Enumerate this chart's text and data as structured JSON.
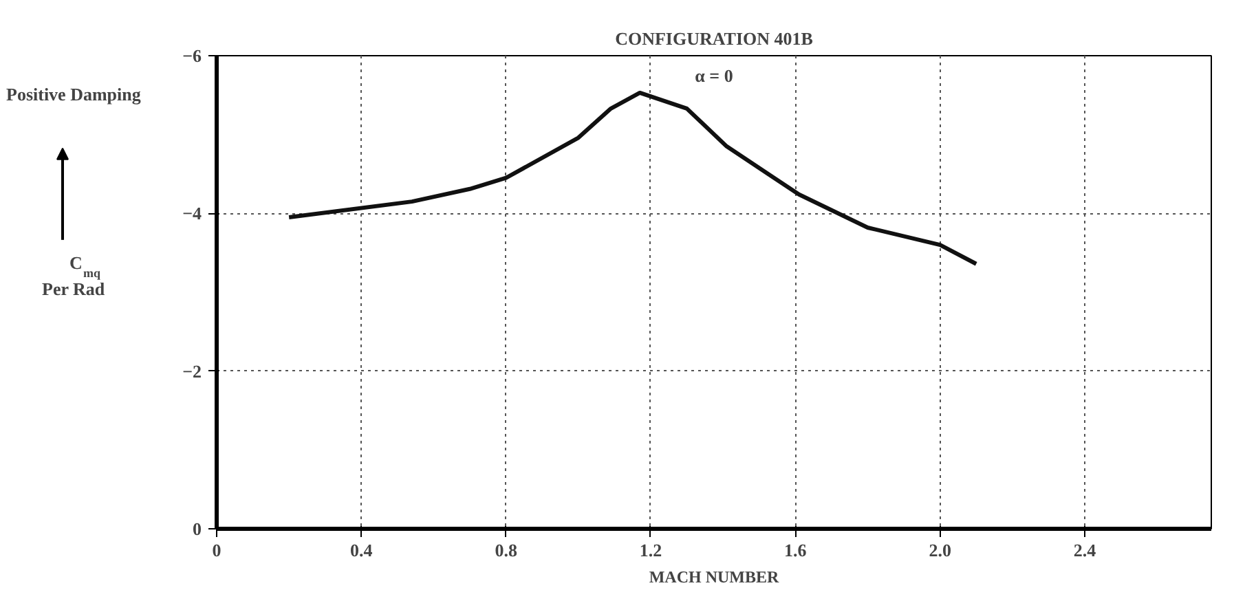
{
  "chart_data": {
    "type": "line",
    "title": "CONFIGURATION 401B",
    "xlabel": "MACH NUMBER",
    "ylabel": "C$_{mq}$ Per Rad",
    "annotations": [
      "Positive Damping",
      "α = 0"
    ],
    "x": [
      0.2,
      0.54,
      0.7,
      0.8,
      1.0,
      1.09,
      1.17,
      1.3,
      1.41,
      1.61,
      1.8,
      2.0,
      2.1
    ],
    "series": [
      {
        "color": "#111111",
        "values": [
          -3.95,
          -4.15,
          -4.31,
          -4.45,
          -4.96,
          -5.33,
          -5.53,
          -5.33,
          -4.85,
          -4.24,
          -3.82,
          -3.6,
          -3.36
        ]
      }
    ],
    "xlim": [
      0,
      2.75
    ],
    "ylim": [
      0,
      -6
    ],
    "xticks": [
      0,
      0.4,
      0.8,
      1.2,
      1.6,
      {
        "value": 2,
        "label": "2.0"
      },
      2.4
    ],
    "yticks": [
      0,
      -2,
      -4,
      -6
    ],
    "grid": true,
    "marker": "none",
    "line_style": "solid"
  }
}
